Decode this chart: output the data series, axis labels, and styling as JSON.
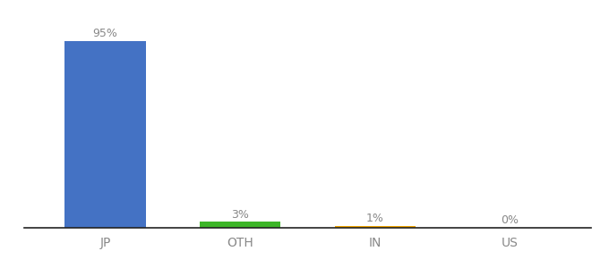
{
  "categories": [
    "JP",
    "OTH",
    "IN",
    "US"
  ],
  "values": [
    95,
    3,
    1,
    0
  ],
  "bar_colors": [
    "#4472c4",
    "#3cb527",
    "#f0a500",
    "#4472c4"
  ],
  "labels": [
    "95%",
    "3%",
    "1%",
    "0%"
  ],
  "background_color": "#ffffff",
  "ylim": [
    0,
    105
  ],
  "bar_width": 0.6,
  "label_color": "#888888",
  "tick_color": "#888888"
}
